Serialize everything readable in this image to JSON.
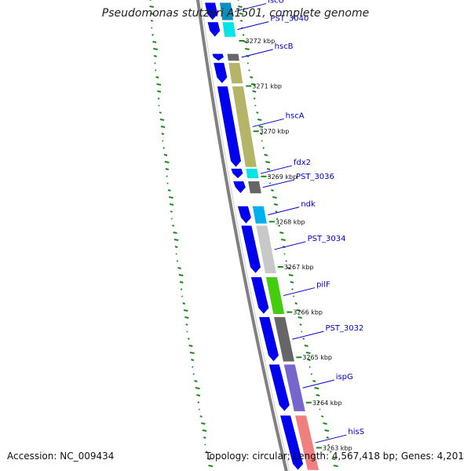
{
  "title": "Pseudomonas stutzeri A1501, complete genome",
  "footer": {
    "accession": "Accession: NC_009434",
    "topology": "Topology: circular; Length: 4,567,418 bp; Genes: 4,201"
  },
  "colors": {
    "cds": "#0000ee",
    "backbone": "#808080",
    "gc_dots": "#1a8a1a",
    "label": "#0000cc"
  },
  "kbp_ticks": [
    {
      "label": "3272 kbp",
      "pos": 3272
    },
    {
      "label": "3271 kbp",
      "pos": 3271
    },
    {
      "label": "3270 kbp",
      "pos": 3270
    },
    {
      "label": "3269 kbp",
      "pos": 3269
    },
    {
      "label": "3268 kbp",
      "pos": 3268
    },
    {
      "label": "3267 kbp",
      "pos": 3267
    },
    {
      "label": "3266 kbp",
      "pos": 3266
    },
    {
      "label": "3265 kbp",
      "pos": 3265
    },
    {
      "label": "3264 kbp",
      "pos": 3264
    },
    {
      "label": "3263 kbp",
      "pos": 3263
    }
  ],
  "genes": [
    {
      "name": "iscU",
      "start": 3272.45,
      "end": 3272.85,
      "cog": "#0a8fbf"
    },
    {
      "name": "PST_3040",
      "start": 3272.08,
      "end": 3272.42,
      "cog": "#00e5e5"
    },
    {
      "name": "hscB",
      "start": 3271.55,
      "end": 3271.72,
      "cog": "#666666"
    },
    {
      "name": "",
      "start": 3271.05,
      "end": 3271.52,
      "cog": "#b5b56a"
    },
    {
      "name": "hscA",
      "start": 3269.2,
      "end": 3271.0,
      "cog": "#b5b56a"
    },
    {
      "name": "fdx2",
      "start": 3268.95,
      "end": 3269.18,
      "cog": "#00e5e5"
    },
    {
      "name": "PST_3036",
      "start": 3268.62,
      "end": 3268.9,
      "cog": "#666666"
    },
    {
      "name": "ndk",
      "start": 3267.95,
      "end": 3268.35,
      "cog": "#00b0ee"
    },
    {
      "name": "PST_3034",
      "start": 3266.85,
      "end": 3267.92,
      "cog": "#c8c8c8"
    },
    {
      "name": "pilF",
      "start": 3265.95,
      "end": 3266.78,
      "cog": "#44cc11"
    },
    {
      "name": "PST_3032",
      "start": 3264.9,
      "end": 3265.9,
      "cog": "#666666"
    },
    {
      "name": "ispG",
      "start": 3263.8,
      "end": 3264.85,
      "cog": "#7766cc"
    },
    {
      "name": "hisS",
      "start": 3262.5,
      "end": 3263.72,
      "cog": "#f08080"
    }
  ]
}
